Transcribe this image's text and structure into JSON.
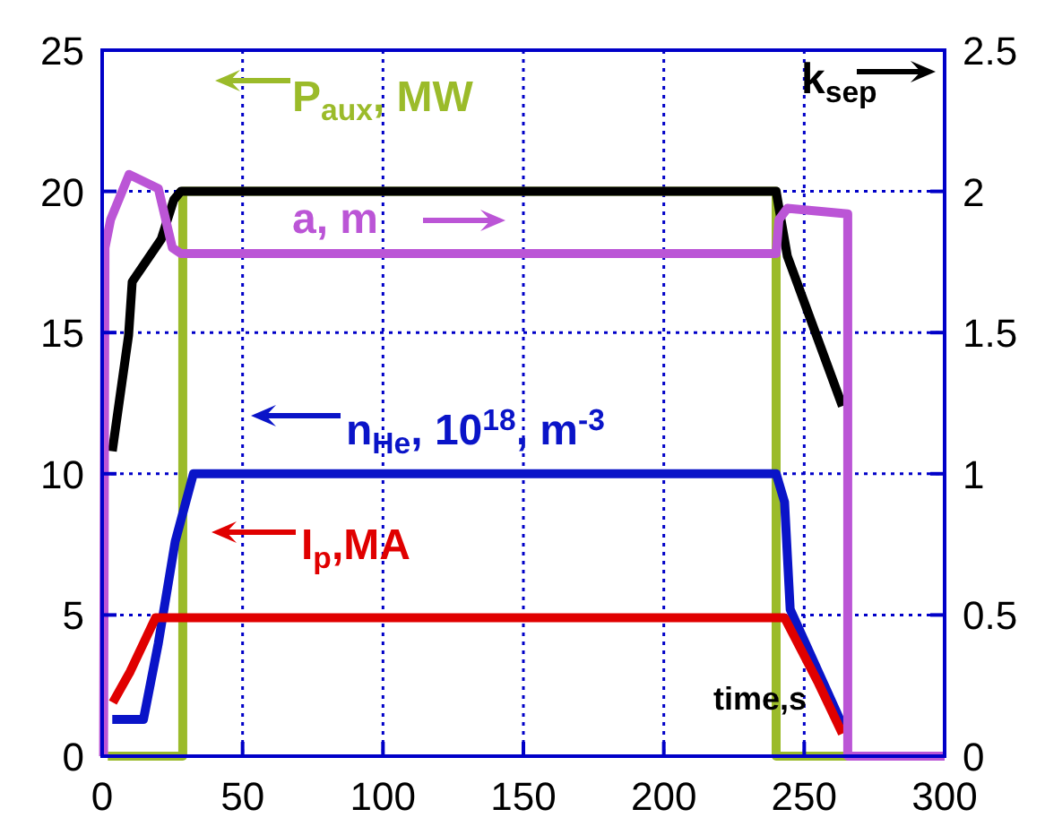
{
  "chart_data": {
    "type": "line",
    "xlabel": "time,s",
    "xlim": [
      0,
      300
    ],
    "xticks": [
      0,
      50,
      100,
      150,
      200,
      250,
      300
    ],
    "ylim": [
      0,
      25
    ],
    "yticks": [
      0,
      5,
      10,
      15,
      20,
      25
    ],
    "y2lim": [
      0,
      2.5
    ],
    "y2ticks": [
      0,
      0.5,
      1,
      1.5,
      2,
      2.5
    ],
    "grid": true,
    "legend": "top left",
    "series": [
      {
        "name": "P$_{aux}$, MW",
        "color": "#9bbb2a",
        "x": [
          2,
          28.7,
          28.7,
          240,
          240,
          266
        ],
        "values": [
          0,
          0,
          20,
          20,
          0,
          0
        ]
      },
      {
        "name": "n$_{He}$, 10$^{18}$, m$^{-3}$",
        "color": "#0a14c8",
        "x": [
          3.6,
          14.7,
          20,
          26,
          32.5,
          240,
          243,
          245,
          255,
          263.6
        ],
        "values": [
          1.3,
          1.3,
          4,
          7.6,
          10,
          10,
          9,
          5.2,
          3,
          1.1
        ]
      },
      {
        "name": "I$_{p}$,MA",
        "color": "#e00000",
        "x": [
          3.8,
          10,
          19,
          240,
          243,
          255,
          263.6
        ],
        "values": [
          1.9,
          3,
          4.9,
          4.9,
          4.9,
          2.6,
          0.8
        ]
      },
      {
        "name": "k$_{sep}$",
        "color": "#000000",
        "axis": "y2",
        "x": [
          3.6,
          9.4,
          10.7,
          21,
          25.5,
          28,
          240,
          244,
          263.6
        ],
        "values": [
          1.08,
          1.49,
          1.68,
          1.83,
          1.97,
          2,
          2,
          1.77,
          1.24
        ]
      },
      {
        "name": "a, m",
        "color": "#bb55d6",
        "axis": "y2",
        "x": [
          0.5,
          1,
          3,
          9.6,
          20,
          25,
          28,
          240,
          241,
          244,
          265.5,
          265.5,
          300
        ],
        "values": [
          0,
          1.8,
          1.9,
          2.06,
          2.01,
          1.8,
          1.78,
          1.78,
          1.9,
          1.94,
          1.92,
          0,
          0
        ]
      }
    ]
  }
}
